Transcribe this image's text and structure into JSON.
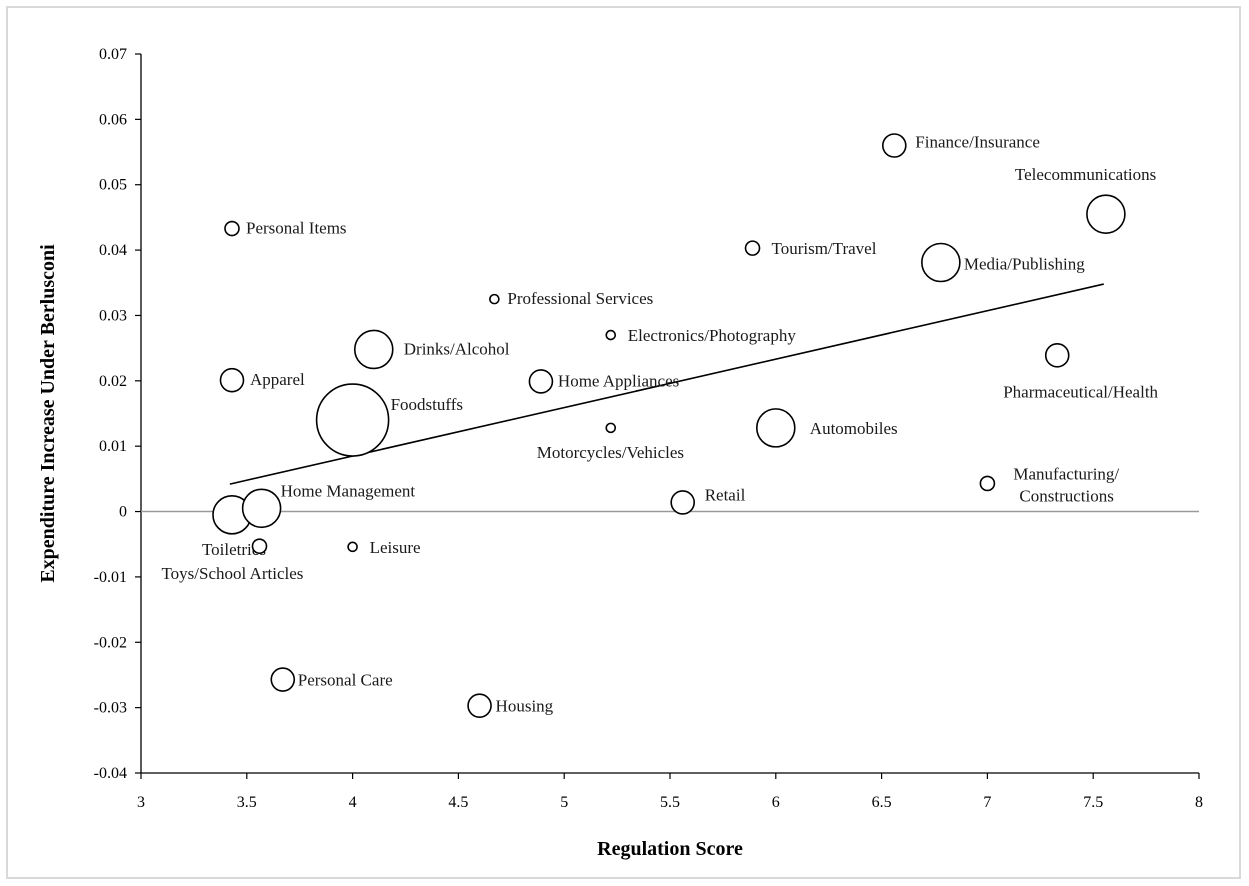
{
  "chart_data": {
    "type": "scatter",
    "xlabel": "Regulation Score",
    "ylabel": "Expenditure Increase Under Berlusconi",
    "xlim": [
      3,
      8
    ],
    "ylim": [
      -0.04,
      0.07
    ],
    "x_ticks": [
      "3",
      "3.5",
      "4",
      "4.5",
      "5",
      "5.5",
      "6",
      "6.5",
      "7",
      "7.5",
      "8"
    ],
    "y_ticks": [
      "0.07",
      "0.06",
      "0.05",
      "0.04",
      "0.03",
      "0.02",
      "0.01",
      "0",
      "-0.01",
      "-0.02",
      "-0.03",
      "-0.04"
    ],
    "zero_line": true,
    "trend_line": {
      "x": [
        3.42,
        7.55
      ],
      "y": [
        0.0042,
        0.0348
      ]
    },
    "points": [
      {
        "label": "Personal Items",
        "x": 3.43,
        "y": 0.0433,
        "size": "small"
      },
      {
        "label": "Apparel",
        "x": 3.43,
        "y": 0.0201,
        "size": "medium"
      },
      {
        "label": "Toiletries",
        "x": 3.43,
        "y": -0.0005,
        "size": "large"
      },
      {
        "label": "Home Management",
        "x": 3.57,
        "y": 0.0005,
        "size": "large"
      },
      {
        "label": "Toys/School Articles",
        "x": 3.56,
        "y": -0.0053,
        "size": "small"
      },
      {
        "label": "Personal Care",
        "x": 3.67,
        "y": -0.0257,
        "size": "medium"
      },
      {
        "label": "Foodstuffs",
        "x": 4.0,
        "y": 0.014,
        "size": "xlarge"
      },
      {
        "label": "Drinks/Alcohol",
        "x": 4.1,
        "y": 0.0248,
        "size": "large"
      },
      {
        "label": "Leisure",
        "x": 4.0,
        "y": -0.0054,
        "size": "tiny"
      },
      {
        "label": "Housing",
        "x": 4.6,
        "y": -0.0297,
        "size": "medium"
      },
      {
        "label": "Professional Services",
        "x": 4.67,
        "y": 0.0325,
        "size": "tiny"
      },
      {
        "label": "Home Appliances",
        "x": 4.89,
        "y": 0.0199,
        "size": "medium"
      },
      {
        "label": "Electronics/Photography",
        "x": 5.22,
        "y": 0.027,
        "size": "tiny"
      },
      {
        "label": "Motorcycles/Vehicles",
        "x": 5.22,
        "y": 0.0128,
        "size": "tiny"
      },
      {
        "label": "Retail",
        "x": 5.56,
        "y": 0.0014,
        "size": "medium"
      },
      {
        "label": "Automobiles",
        "x": 6.0,
        "y": 0.0128,
        "size": "large"
      },
      {
        "label": "Tourism/Travel",
        "x": 5.89,
        "y": 0.0403,
        "size": "small"
      },
      {
        "label": "Finance/Insurance",
        "x": 6.56,
        "y": 0.056,
        "size": "medium"
      },
      {
        "label": "Media/Publishing",
        "x": 6.78,
        "y": 0.0381,
        "size": "large"
      },
      {
        "label": "Telecommunications",
        "x": 7.56,
        "y": 0.0455,
        "size": "large"
      },
      {
        "label": "Pharmaceutical/Health",
        "x": 7.33,
        "y": 0.0239,
        "size": "medium"
      },
      {
        "label": "Manufacturing/ Constructions",
        "x": 7.0,
        "y": 0.0043,
        "size": "small"
      }
    ]
  }
}
